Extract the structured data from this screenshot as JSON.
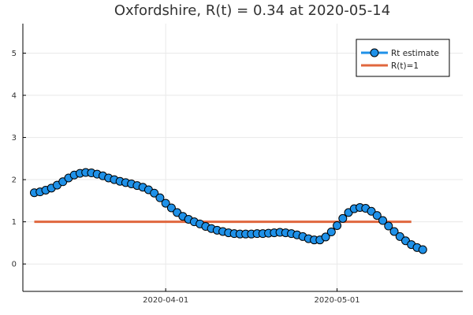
{
  "chart_data": {
    "type": "line",
    "title": "Oxfordshire, R(t) = 0.34 at 2020-05-14",
    "xlabel": "",
    "ylabel": "",
    "x_start": "2020-03-09",
    "x_end": "2020-05-14",
    "xlim": [
      "2020-03-07",
      "2020-05-23"
    ],
    "ylim": [
      -0.65,
      5.7
    ],
    "x_ticks": [
      {
        "value": "2020-04-01",
        "label": "2020-04-01"
      },
      {
        "value": "2020-05-01",
        "label": "2020-05-01"
      }
    ],
    "y_ticks": [
      0,
      1,
      2,
      3,
      4,
      5
    ],
    "grid": true,
    "legend_position": "top-right",
    "series": [
      {
        "name": "Rt estimate",
        "color": "#1f91e8",
        "marker": "circle",
        "values": [
          1.69,
          1.71,
          1.75,
          1.8,
          1.87,
          1.95,
          2.04,
          2.11,
          2.15,
          2.17,
          2.16,
          2.13,
          2.09,
          2.04,
          2.0,
          1.96,
          1.93,
          1.9,
          1.86,
          1.82,
          1.76,
          1.68,
          1.57,
          1.44,
          1.33,
          1.22,
          1.13,
          1.06,
          1.0,
          0.95,
          0.89,
          0.84,
          0.8,
          0.77,
          0.74,
          0.72,
          0.71,
          0.71,
          0.71,
          0.72,
          0.72,
          0.73,
          0.74,
          0.75,
          0.74,
          0.72,
          0.69,
          0.65,
          0.6,
          0.57,
          0.57,
          0.64,
          0.76,
          0.91,
          1.08,
          1.22,
          1.31,
          1.34,
          1.32,
          1.25,
          1.15,
          1.03,
          0.9,
          0.77,
          0.65,
          0.55,
          0.46,
          0.39,
          0.34
        ]
      },
      {
        "name": "R(t)=1",
        "color": "#e0673e",
        "values": [
          1,
          1
        ]
      }
    ]
  }
}
